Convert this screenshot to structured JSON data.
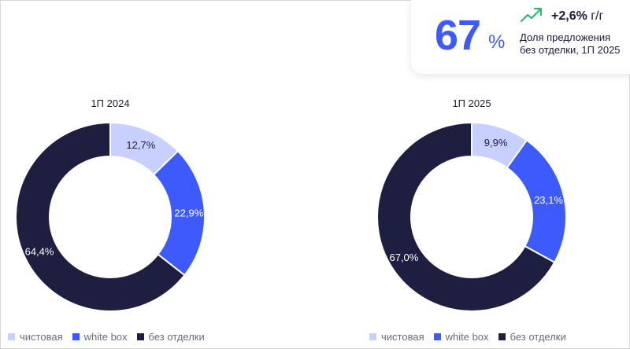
{
  "kpi": {
    "value": "67",
    "unit": "%",
    "delta": "+2,6%",
    "delta_unit": "г/г",
    "caption_line1": "Доля предложения",
    "caption_line2": "без отделки, 1П 2025",
    "trend_icon": "trend-up-arrow-icon",
    "trend_color": "#2eb67d"
  },
  "legend": {
    "items": [
      {
        "label": "чистовая",
        "color": "#c7d0ff"
      },
      {
        "label": "white box",
        "color": "#3d5afe"
      },
      {
        "label": "без отделки",
        "color": "#1e1e40"
      }
    ]
  },
  "chart_data": [
    {
      "type": "pie",
      "title": "1П 2024",
      "categories": [
        "чистовая",
        "white box",
        "без отделки"
      ],
      "values": [
        12.7,
        22.9,
        64.4
      ],
      "labels": [
        "12,7%",
        "22,9%",
        "64,4%"
      ],
      "colors": [
        "#c7d0ff",
        "#3d5afe",
        "#1e1e40"
      ],
      "label_colors": [
        "#1c1c3a",
        "#ffffff",
        "#ffffff"
      ]
    },
    {
      "type": "pie",
      "title": "1П 2025",
      "categories": [
        "чистовая",
        "white box",
        "без отделки"
      ],
      "values": [
        9.9,
        23.1,
        67.0
      ],
      "labels": [
        "9,9%",
        "23,1%",
        "67,0%"
      ],
      "colors": [
        "#c7d0ff",
        "#3d5afe",
        "#1e1e40"
      ],
      "label_colors": [
        "#1c1c3a",
        "#ffffff",
        "#ffffff"
      ]
    }
  ]
}
